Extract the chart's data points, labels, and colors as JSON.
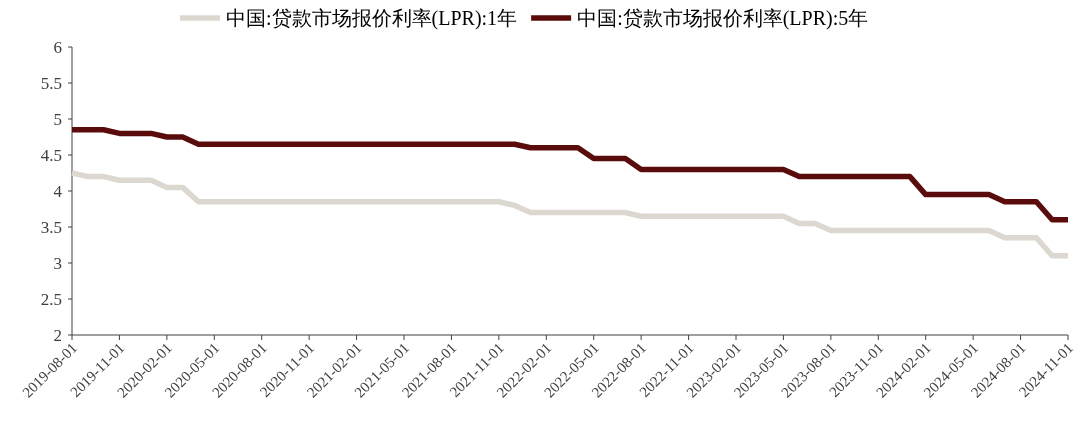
{
  "chart_data": {
    "type": "line",
    "legend": "top",
    "x": [
      "2019-08",
      "2019-09",
      "2019-10",
      "2019-11",
      "2019-12",
      "2020-01",
      "2020-02",
      "2020-03",
      "2020-04",
      "2020-05",
      "2020-06",
      "2020-07",
      "2020-08",
      "2020-09",
      "2020-10",
      "2020-11",
      "2020-12",
      "2021-01",
      "2021-02",
      "2021-03",
      "2021-04",
      "2021-05",
      "2021-06",
      "2021-07",
      "2021-08",
      "2021-09",
      "2021-10",
      "2021-11",
      "2021-12",
      "2022-01",
      "2022-02",
      "2022-03",
      "2022-04",
      "2022-05",
      "2022-06",
      "2022-07",
      "2022-08",
      "2022-09",
      "2022-10",
      "2022-11",
      "2022-12",
      "2023-01",
      "2023-02",
      "2023-03",
      "2023-04",
      "2023-05",
      "2023-06",
      "2023-07",
      "2023-08",
      "2023-09",
      "2023-10",
      "2023-11",
      "2023-12",
      "2024-01",
      "2024-02",
      "2024-03",
      "2024-04",
      "2024-05",
      "2024-06",
      "2024-07",
      "2024-08",
      "2024-09",
      "2024-10",
      "2024-11"
    ],
    "series": [
      {
        "name": "中国:贷款市场报价利率(LPR):1年",
        "color": "#dcd8cf",
        "values": [
          4.25,
          4.2,
          4.2,
          4.15,
          4.15,
          4.15,
          4.05,
          4.05,
          3.85,
          3.85,
          3.85,
          3.85,
          3.85,
          3.85,
          3.85,
          3.85,
          3.85,
          3.85,
          3.85,
          3.85,
          3.85,
          3.85,
          3.85,
          3.85,
          3.85,
          3.85,
          3.85,
          3.85,
          3.8,
          3.7,
          3.7,
          3.7,
          3.7,
          3.7,
          3.7,
          3.7,
          3.65,
          3.65,
          3.65,
          3.65,
          3.65,
          3.65,
          3.65,
          3.65,
          3.65,
          3.65,
          3.55,
          3.55,
          3.45,
          3.45,
          3.45,
          3.45,
          3.45,
          3.45,
          3.45,
          3.45,
          3.45,
          3.45,
          3.45,
          3.35,
          3.35,
          3.35,
          3.1,
          3.1
        ]
      },
      {
        "name": "中国:贷款市场报价利率(LPR):5年",
        "color": "#5a0c0c",
        "values": [
          4.85,
          4.85,
          4.85,
          4.8,
          4.8,
          4.8,
          4.75,
          4.75,
          4.65,
          4.65,
          4.65,
          4.65,
          4.65,
          4.65,
          4.65,
          4.65,
          4.65,
          4.65,
          4.65,
          4.65,
          4.65,
          4.65,
          4.65,
          4.65,
          4.65,
          4.65,
          4.65,
          4.65,
          4.65,
          4.6,
          4.6,
          4.6,
          4.6,
          4.45,
          4.45,
          4.45,
          4.3,
          4.3,
          4.3,
          4.3,
          4.3,
          4.3,
          4.3,
          4.3,
          4.3,
          4.3,
          4.2,
          4.2,
          4.2,
          4.2,
          4.2,
          4.2,
          4.2,
          4.2,
          3.95,
          3.95,
          3.95,
          3.95,
          3.95,
          3.85,
          3.85,
          3.85,
          3.6,
          3.6
        ]
      }
    ],
    "xlim": [
      "2019-08",
      "2024-11"
    ],
    "xticks": [
      {
        "value": "2019-08",
        "label": "2019-08-01"
      },
      {
        "value": "2019-11",
        "label": "2019-11-01"
      },
      {
        "value": "2020-02",
        "label": "2020-02-01"
      },
      {
        "value": "2020-05",
        "label": "2020-05-01"
      },
      {
        "value": "2020-08",
        "label": "2020-08-01"
      },
      {
        "value": "2020-11",
        "label": "2020-11-01"
      },
      {
        "value": "2021-02",
        "label": "2021-02-01"
      },
      {
        "value": "2021-05",
        "label": "2021-05-01"
      },
      {
        "value": "2021-08",
        "label": "2021-08-01"
      },
      {
        "value": "2021-11",
        "label": "2021-11-01"
      },
      {
        "value": "2022-02",
        "label": "2022-02-01"
      },
      {
        "value": "2022-05",
        "label": "2022-05-01"
      },
      {
        "value": "2022-08",
        "label": "2022-08-01"
      },
      {
        "value": "2022-11",
        "label": "2022-11-01"
      },
      {
        "value": "2023-02",
        "label": "2023-02-01"
      },
      {
        "value": "2023-05",
        "label": "2023-05-01"
      },
      {
        "value": "2023-08",
        "label": "2023-08-01"
      },
      {
        "value": "2023-11",
        "label": "2023-11-01"
      },
      {
        "value": "2024-02",
        "label": "2024-02-01"
      },
      {
        "value": "2024-05",
        "label": "2024-05-01"
      },
      {
        "value": "2024-08",
        "label": "2024-08-01"
      },
      {
        "value": "2024-11",
        "label": "2024-11-01"
      }
    ],
    "ylim": [
      2,
      6
    ],
    "yticks": [
      2,
      2.5,
      3,
      3.5,
      4,
      4.5,
      5,
      5.5,
      6
    ]
  }
}
